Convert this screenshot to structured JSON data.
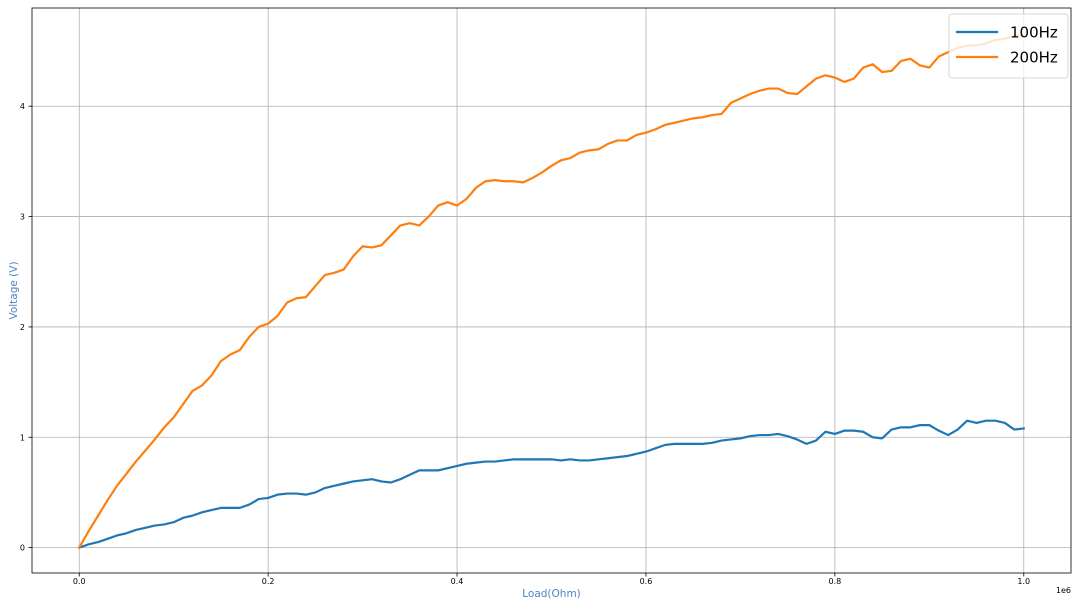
{
  "chart_data": {
    "type": "line",
    "xlabel": "Load(Ohm)",
    "ylabel": "Voltage (V)",
    "x_offset_text": "1e6",
    "label_color": "#4d86c0",
    "xlim": [
      -0.05,
      1.05
    ],
    "ylim": [
      -0.23,
      4.89
    ],
    "xticks": [
      0.0,
      0.2,
      0.4,
      0.6,
      0.8,
      1.0
    ],
    "xtick_labels": [
      "0.0",
      "0.2",
      "0.4",
      "0.6",
      "0.8",
      "1.0"
    ],
    "yticks": [
      0,
      1,
      2,
      3,
      4
    ],
    "ytick_labels": [
      "0",
      "1",
      "2",
      "3",
      "4"
    ],
    "grid": true,
    "legend_position": "top-right",
    "x": [
      0.0,
      0.01,
      0.02,
      0.03,
      0.04,
      0.05,
      0.06,
      0.07,
      0.08,
      0.09,
      0.1,
      0.11,
      0.12,
      0.13,
      0.14,
      0.15,
      0.16,
      0.17,
      0.18,
      0.19,
      0.2,
      0.21,
      0.22,
      0.23,
      0.24,
      0.25,
      0.26,
      0.27,
      0.28,
      0.29,
      0.3,
      0.31,
      0.32,
      0.33,
      0.34,
      0.35,
      0.36,
      0.37,
      0.38,
      0.39,
      0.4,
      0.41,
      0.42,
      0.43,
      0.44,
      0.45,
      0.46,
      0.47,
      0.48,
      0.49,
      0.5,
      0.51,
      0.52,
      0.53,
      0.54,
      0.55,
      0.56,
      0.57,
      0.58,
      0.59,
      0.6,
      0.61,
      0.62,
      0.63,
      0.64,
      0.65,
      0.66,
      0.67,
      0.68,
      0.69,
      0.7,
      0.71,
      0.72,
      0.73,
      0.74,
      0.75,
      0.76,
      0.77,
      0.78,
      0.79,
      0.8,
      0.81,
      0.82,
      0.83,
      0.84,
      0.85,
      0.86,
      0.87,
      0.88,
      0.89,
      0.9,
      0.91,
      0.92,
      0.93,
      0.94,
      0.95,
      0.96,
      0.97,
      0.98,
      0.99,
      1.0
    ],
    "series": [
      {
        "name": "100Hz",
        "color": "#1f77b4",
        "values": [
          0.0,
          0.03,
          0.05,
          0.08,
          0.11,
          0.13,
          0.16,
          0.18,
          0.2,
          0.21,
          0.23,
          0.27,
          0.29,
          0.32,
          0.34,
          0.36,
          0.36,
          0.36,
          0.39,
          0.44,
          0.45,
          0.48,
          0.49,
          0.49,
          0.48,
          0.5,
          0.54,
          0.56,
          0.58,
          0.6,
          0.61,
          0.62,
          0.6,
          0.59,
          0.62,
          0.66,
          0.7,
          0.7,
          0.7,
          0.72,
          0.74,
          0.76,
          0.77,
          0.78,
          0.78,
          0.79,
          0.8,
          0.8,
          0.8,
          0.8,
          0.8,
          0.79,
          0.8,
          0.79,
          0.79,
          0.8,
          0.81,
          0.82,
          0.83,
          0.85,
          0.87,
          0.9,
          0.93,
          0.94,
          0.94,
          0.94,
          0.94,
          0.95,
          0.97,
          0.98,
          0.99,
          1.01,
          1.02,
          1.02,
          1.03,
          1.01,
          0.98,
          0.94,
          0.97,
          1.05,
          1.03,
          1.06,
          1.06,
          1.05,
          1.0,
          0.99,
          1.07,
          1.09,
          1.09,
          1.11,
          1.11,
          1.06,
          1.02,
          1.07,
          1.15,
          1.13,
          1.15,
          1.15,
          1.13,
          1.07,
          1.08
        ]
      },
      {
        "name": "200Hz",
        "color": "#ff7f0e",
        "values": [
          0.0,
          0.15,
          0.29,
          0.43,
          0.56,
          0.67,
          0.78,
          0.88,
          0.98,
          1.09,
          1.18,
          1.3,
          1.42,
          1.47,
          1.56,
          1.69,
          1.75,
          1.79,
          1.91,
          2.0,
          2.03,
          2.1,
          2.22,
          2.26,
          2.27,
          2.37,
          2.47,
          2.49,
          2.52,
          2.64,
          2.73,
          2.72,
          2.74,
          2.83,
          2.92,
          2.94,
          2.92,
          3.0,
          3.1,
          3.13,
          3.1,
          3.16,
          3.26,
          3.32,
          3.33,
          3.32,
          3.32,
          3.31,
          3.35,
          3.4,
          3.46,
          3.51,
          3.53,
          3.58,
          3.6,
          3.61,
          3.66,
          3.69,
          3.69,
          3.74,
          3.76,
          3.79,
          3.83,
          3.85,
          3.87,
          3.89,
          3.9,
          3.92,
          3.93,
          4.03,
          4.07,
          4.11,
          4.14,
          4.16,
          4.16,
          4.12,
          4.11,
          4.18,
          4.25,
          4.28,
          4.26,
          4.22,
          4.25,
          4.35,
          4.38,
          4.31,
          4.32,
          4.41,
          4.43,
          4.37,
          4.35,
          4.45,
          4.49,
          4.53,
          4.55,
          4.55,
          4.57,
          4.6,
          4.61,
          4.64,
          4.64
        ]
      }
    ]
  }
}
